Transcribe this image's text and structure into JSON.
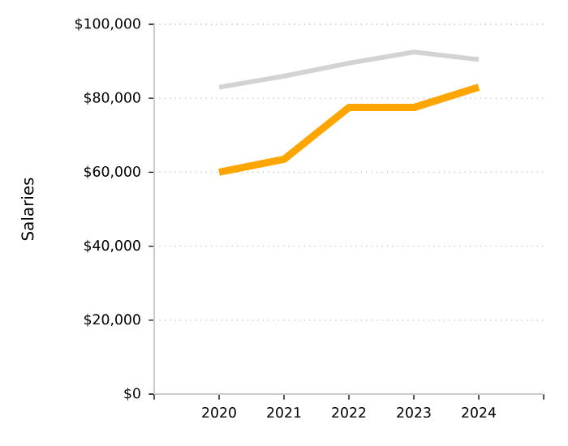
{
  "chart_data": {
    "type": "line",
    "ylabel": "Salaries",
    "x": [
      2020,
      2021,
      2022,
      2023,
      2024
    ],
    "series": [
      {
        "color": "#d3d3d3",
        "values": [
          83000,
          86000,
          89500,
          92500,
          90500
        ]
      },
      {
        "color": "#ffa500",
        "values": [
          60000,
          63500,
          77500,
          77500,
          83000
        ]
      }
    ],
    "xlim": [
      2019,
      2025
    ],
    "xticks": [
      {
        "value": 2019,
        "label": null
      },
      2020,
      2021,
      2022,
      2023,
      2024,
      {
        "value": 2025,
        "label": null
      }
    ],
    "ylim": [
      0,
      100000
    ],
    "yticks": [
      {
        "value": 0,
        "label": "$0"
      },
      {
        "value": 20000,
        "label": "$20,000"
      },
      {
        "value": 40000,
        "label": "$40,000"
      },
      {
        "value": 60000,
        "label": "$60,000"
      },
      {
        "value": 80000,
        "label": "$80,000"
      },
      {
        "value": 100000,
        "label": "$100,000"
      }
    ],
    "grid": "y",
    "marker": "none",
    "line_style": "solid"
  }
}
